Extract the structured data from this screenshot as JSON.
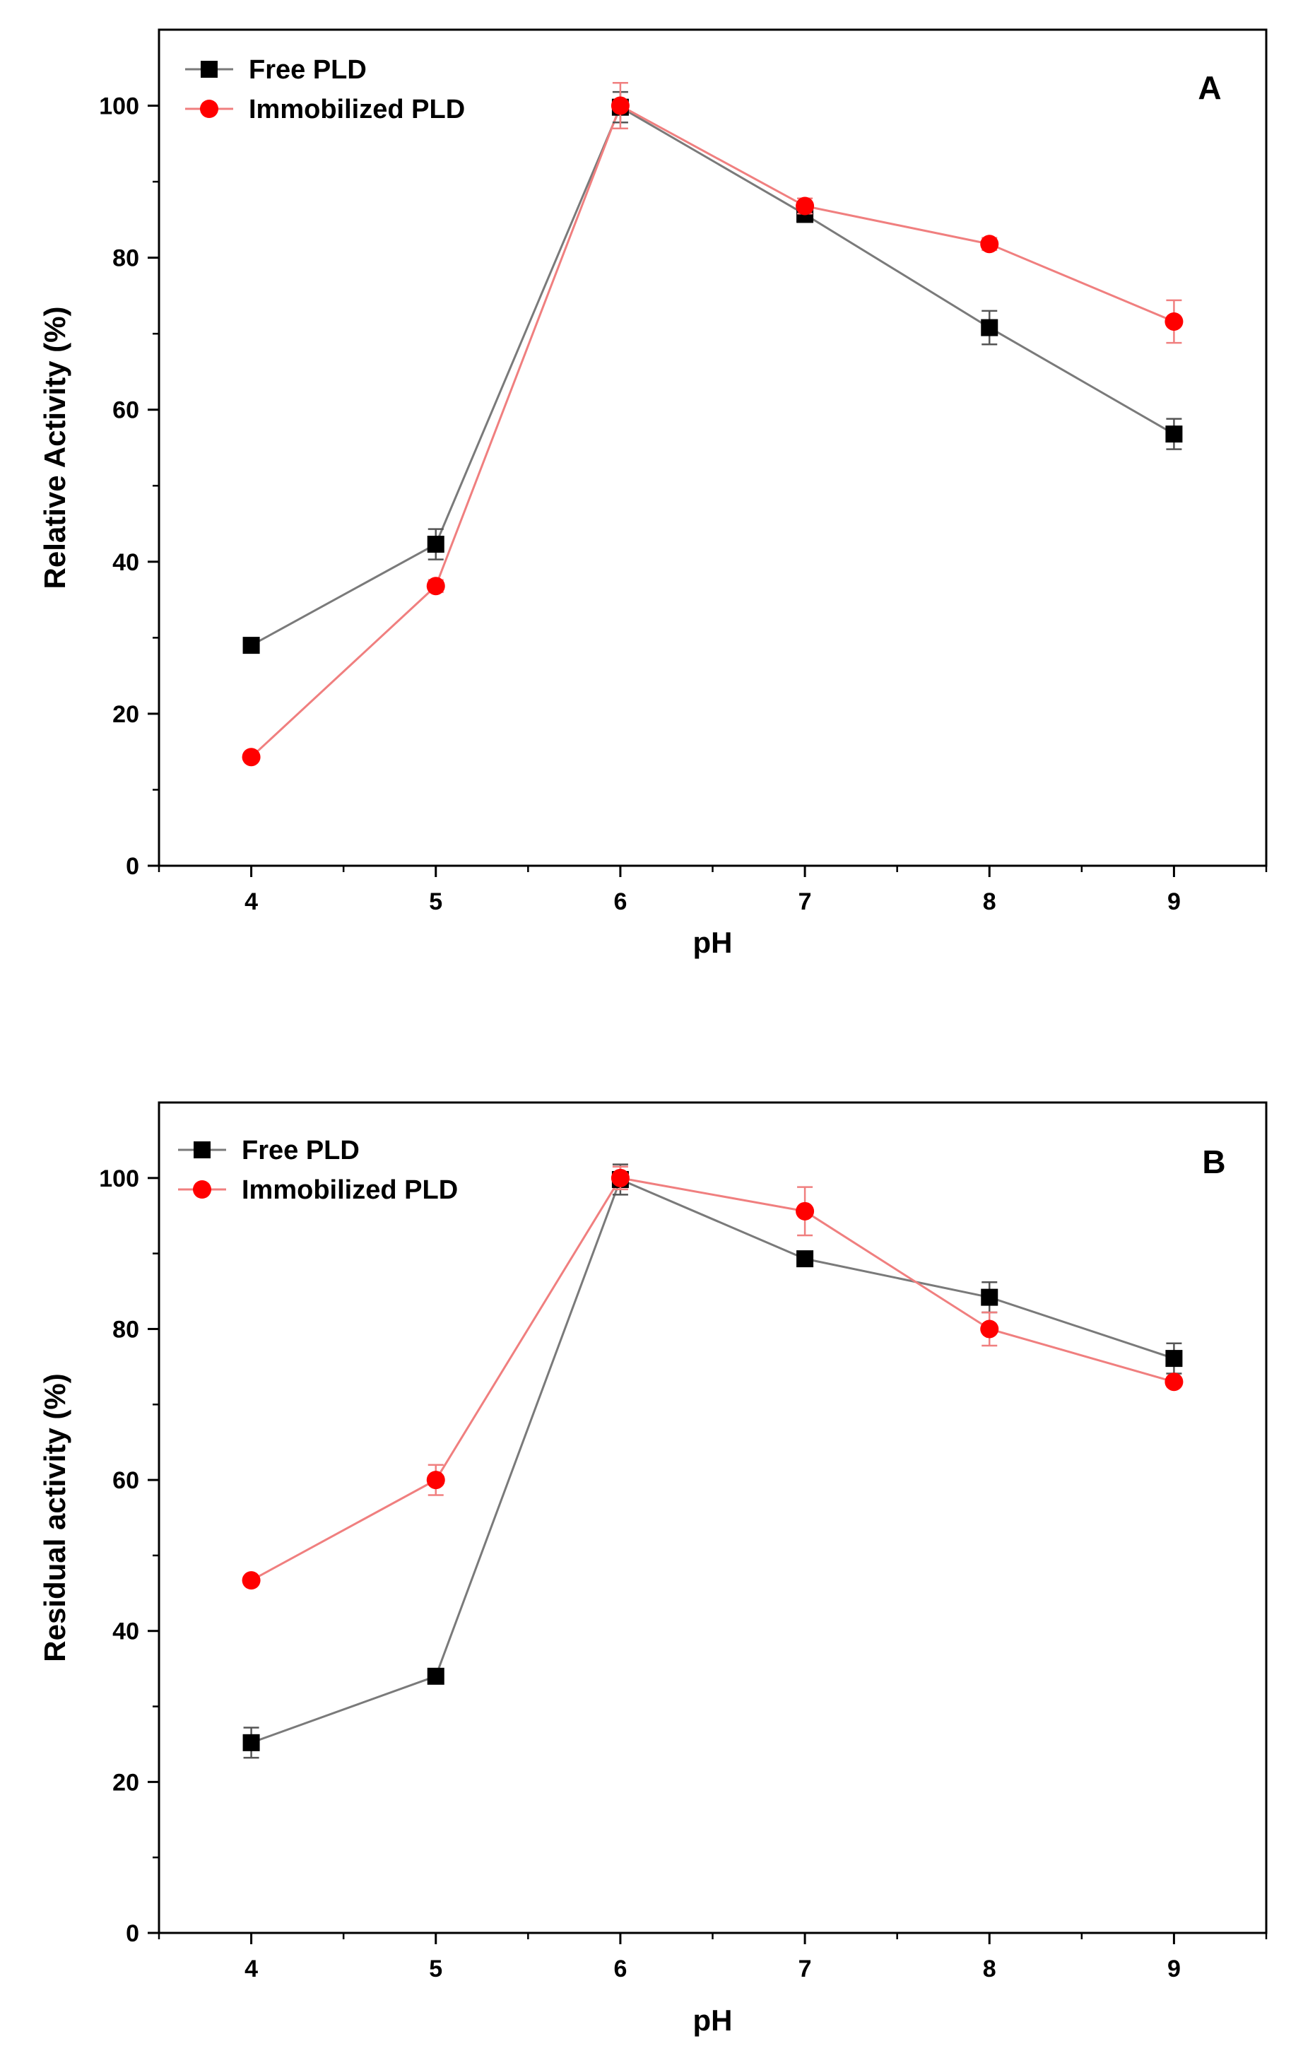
{
  "chart_data": [
    {
      "type": "line",
      "panel_label": "A",
      "xlabel": "pH",
      "ylabel": "Relative Activity (%)",
      "xlim": [
        3.5,
        9.5
      ],
      "ylim": [
        0,
        110
      ],
      "xticks": [
        4,
        5,
        6,
        7,
        8,
        9
      ],
      "yticks": [
        0,
        20,
        40,
        60,
        80,
        100
      ],
      "x": [
        4,
        5,
        6,
        7,
        8,
        9
      ],
      "legend_position": "top-left",
      "series": [
        {
          "name": "Free PLD",
          "color": "#000000",
          "line_color": "#7a7a7a",
          "marker": "square",
          "values": [
            29,
            42.3,
            99.8,
            85.7,
            70.8,
            56.8
          ],
          "errors": [
            0.5,
            2.0,
            2.0,
            1.0,
            2.2,
            2.0
          ]
        },
        {
          "name": "Immobilized PLD",
          "color": "#ff0000",
          "line_color": "#f07f7f",
          "marker": "circle",
          "values": [
            14.3,
            36.8,
            100,
            86.8,
            81.8,
            71.6
          ],
          "errors": [
            0.5,
            0.8,
            3.0,
            1.0,
            0.8,
            2.8
          ]
        }
      ]
    },
    {
      "type": "line",
      "panel_label": "B",
      "xlabel": "pH",
      "ylabel": "Residual activity (%)",
      "xlim": [
        3.5,
        9.5
      ],
      "ylim": [
        0,
        110
      ],
      "xticks": [
        4,
        5,
        6,
        7,
        8,
        9
      ],
      "yticks": [
        0,
        20,
        40,
        60,
        80,
        100
      ],
      "x": [
        4,
        5,
        6,
        7,
        8,
        9
      ],
      "legend_position": "top-left",
      "series": [
        {
          "name": "Free PLD",
          "color": "#000000",
          "line_color": "#7a7a7a",
          "marker": "square",
          "values": [
            25.2,
            34,
            99.8,
            89.3,
            84.2,
            76.1
          ],
          "errors": [
            2.0,
            0.5,
            2.0,
            0.5,
            2.0,
            2.0
          ]
        },
        {
          "name": "Immobilized PLD",
          "color": "#ff0000",
          "line_color": "#f07f7f",
          "marker": "circle",
          "values": [
            46.7,
            60,
            100,
            95.6,
            80,
            73
          ],
          "errors": [
            0.5,
            2.0,
            1.5,
            3.2,
            2.2,
            0.5
          ]
        }
      ]
    }
  ]
}
